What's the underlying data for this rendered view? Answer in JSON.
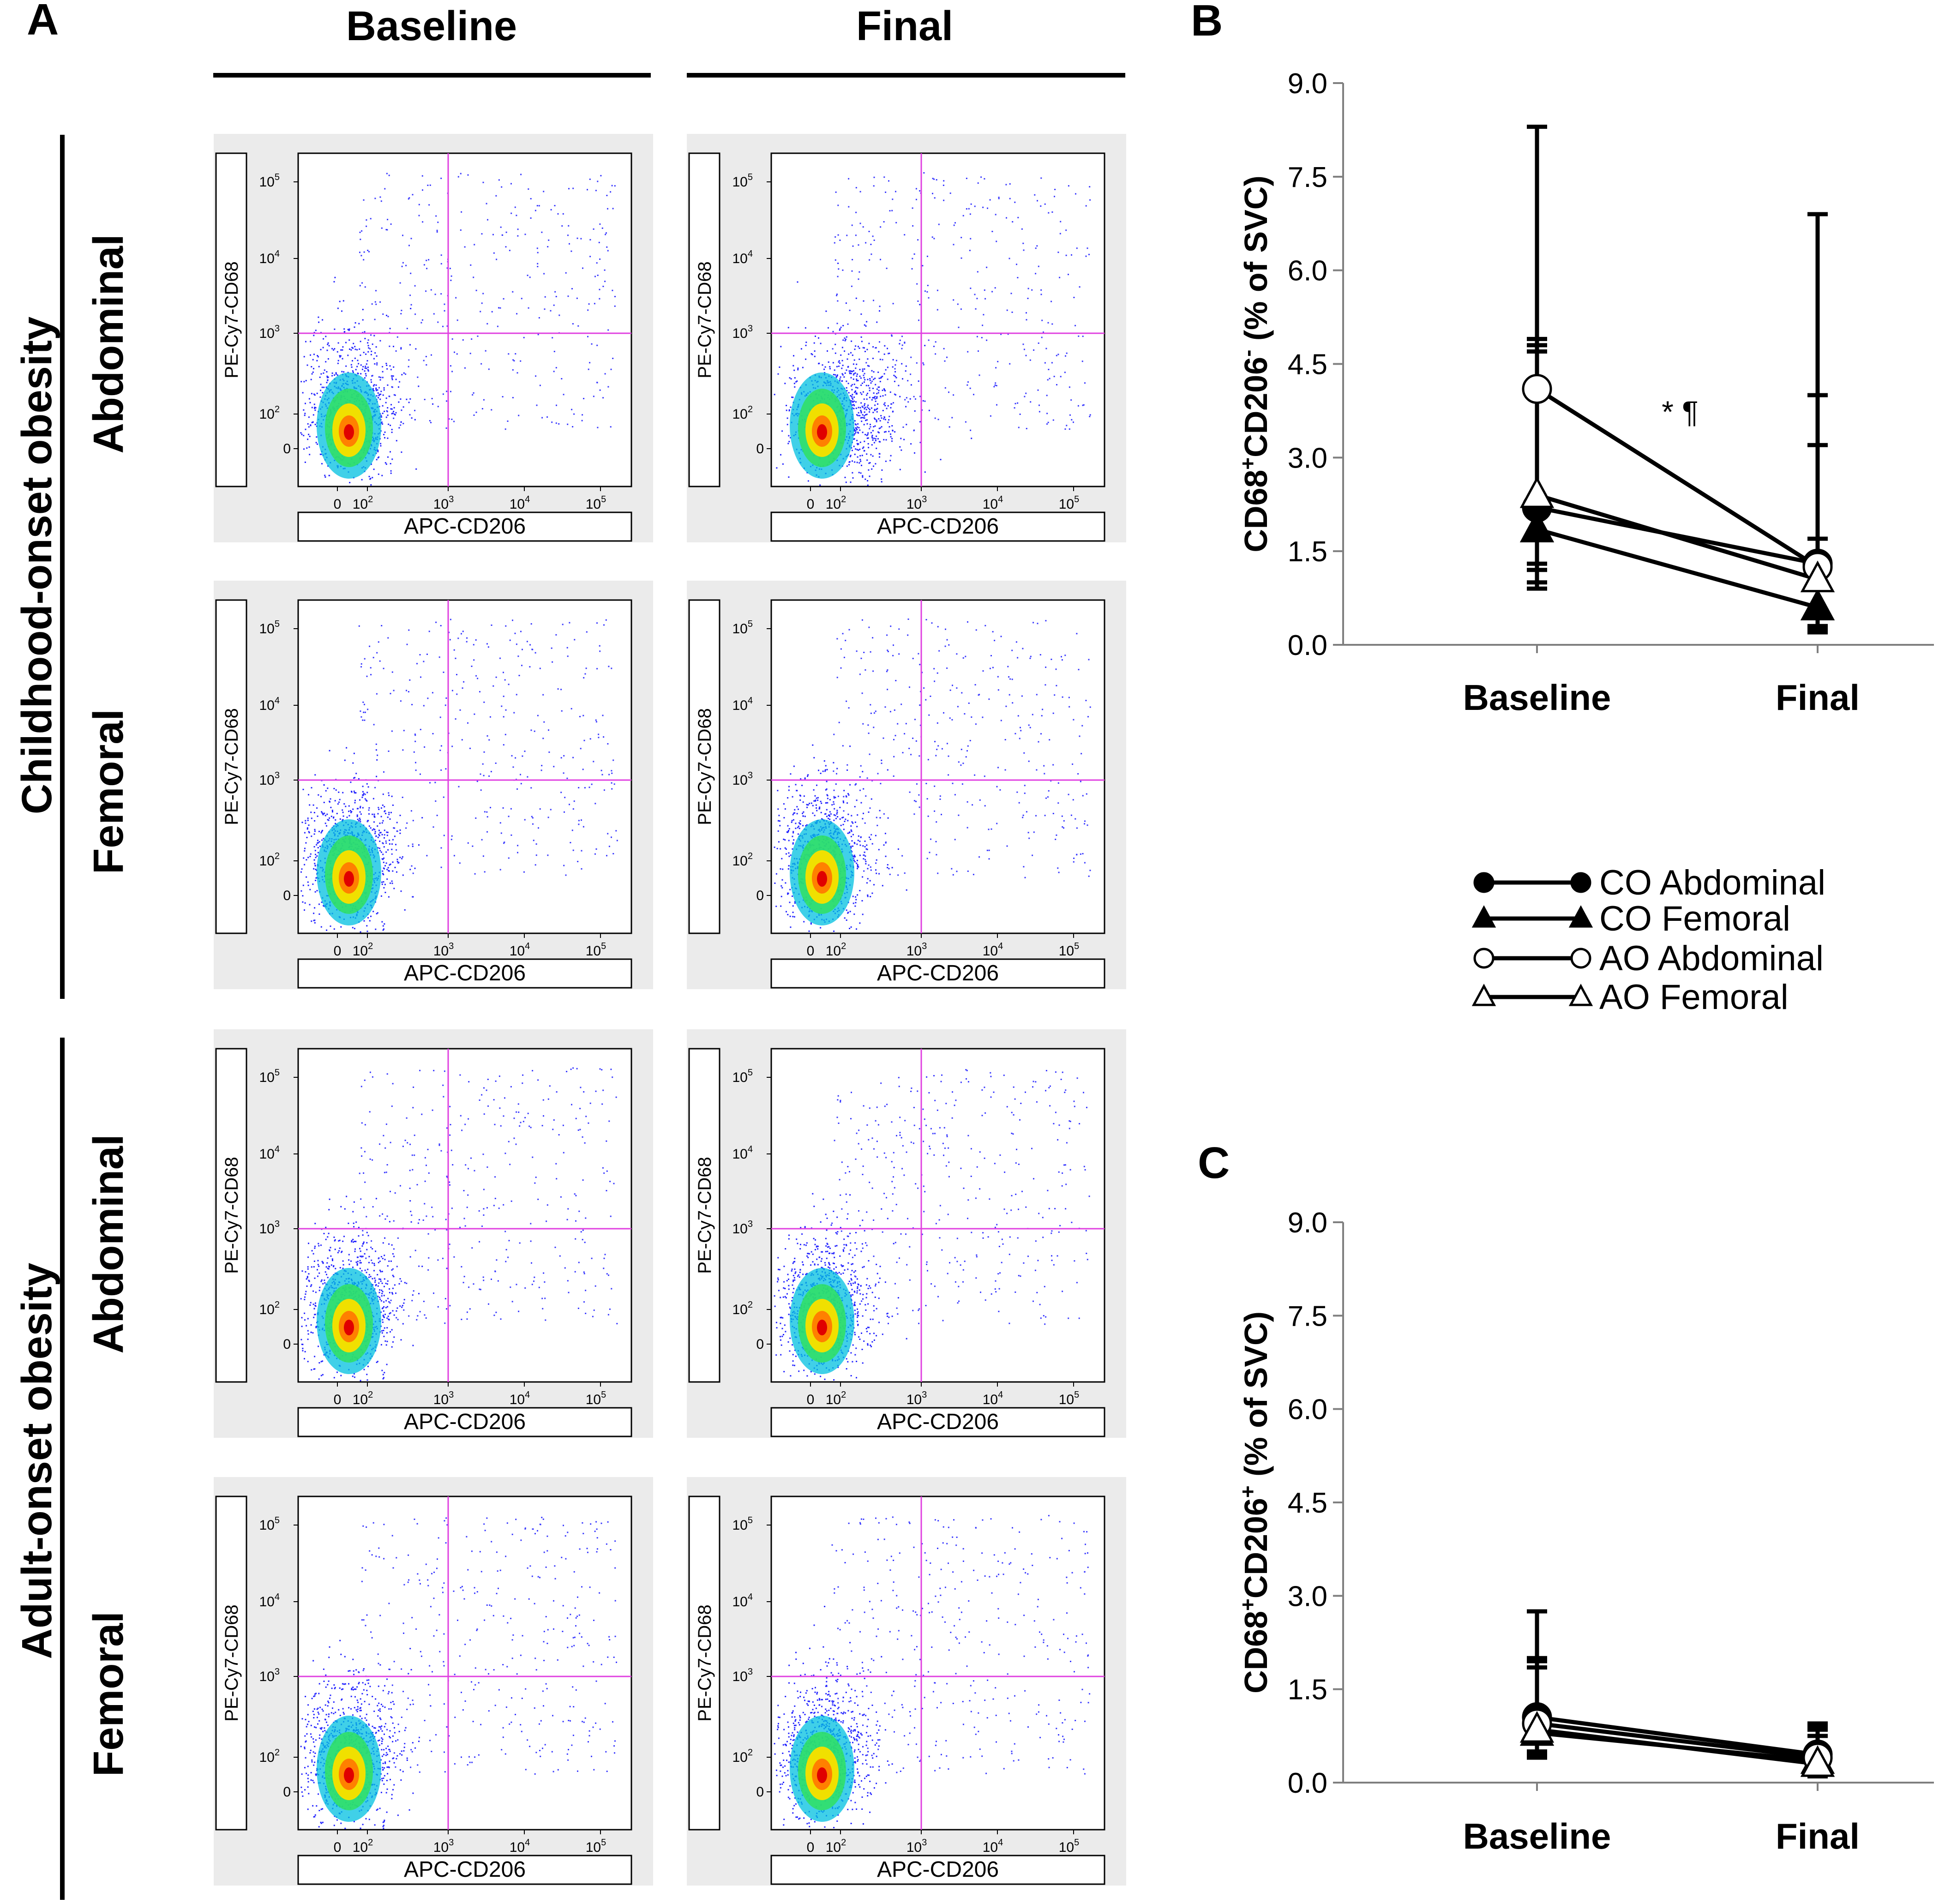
{
  "panel_labels": {
    "a": "A",
    "b": "B",
    "c": "C"
  },
  "flow": {
    "col_headers": [
      "Baseline",
      "Final"
    ],
    "group_labels": [
      "Childhood-onset obesity",
      "Adult-onset obesity"
    ],
    "row_labels": [
      "Abdominal",
      "Femoral",
      "Abdominal",
      "Femoral"
    ],
    "x_axis_label": "APC-CD206",
    "y_axis_label": "PE-Cy7-CD68",
    "tick_base": "10",
    "tick_zero": "0",
    "tick_exps": [
      "2",
      "3",
      "4",
      "5"
    ],
    "quadrant_line_color": "#e040e0",
    "panel_bg_color": "#ebebeb"
  },
  "legend": {
    "entries": [
      "CO Abdominal",
      "CO Femoral",
      "AO Abdominal",
      "AO Femoral"
    ]
  },
  "chart_data": [
    {
      "id": "B",
      "type": "line",
      "title": "",
      "ylabel": "CD68+CD206- (% of SVC)",
      "ylabel_main": "CD68",
      "ylabel_sup1": "+",
      "ylabel_mid": "CD206",
      "ylabel_sup2": "-",
      "ylabel_tail": " (% of SVC)",
      "categories": [
        "Baseline",
        "Final"
      ],
      "ylim": [
        0.0,
        9.0
      ],
      "yticks": [
        "0.0",
        "1.5",
        "3.0",
        "4.5",
        "6.0",
        "7.5",
        "9.0"
      ],
      "annotation": "* ¶",
      "series": [
        {
          "name": "CO Abdominal",
          "marker": "circle-filled",
          "values": [
            2.2,
            1.3
          ],
          "err_upper": [
            4.9,
            3.2
          ],
          "err_lower": [
            1.0,
            0.3
          ]
        },
        {
          "name": "CO Femoral",
          "marker": "triangle-filled",
          "values": [
            1.85,
            0.6
          ],
          "err_upper": [
            4.7,
            1.7
          ],
          "err_lower": [
            0.9,
            0.2
          ]
        },
        {
          "name": "AO Abdominal",
          "marker": "circle-open",
          "values": [
            4.1,
            1.25
          ],
          "err_upper": [
            8.3,
            4.0
          ],
          "err_lower": [
            1.2,
            0.3
          ]
        },
        {
          "name": "AO Femoral",
          "marker": "triangle-open",
          "values": [
            2.4,
            1.05
          ],
          "err_upper": [
            4.8,
            6.9
          ],
          "err_lower": [
            1.3,
            0.25
          ]
        }
      ]
    },
    {
      "id": "C",
      "type": "line",
      "title": "",
      "ylabel": "CD68+CD206+ (% of SVC)",
      "ylabel_main": "CD68",
      "ylabel_sup1": "+",
      "ylabel_mid": "CD206",
      "ylabel_sup2": "+",
      "ylabel_tail": " (% of SVC)",
      "categories": [
        "Baseline",
        "Final"
      ],
      "ylim": [
        0.0,
        9.0
      ],
      "yticks": [
        "0.0",
        "1.5",
        "3.0",
        "4.5",
        "6.0",
        "7.5",
        "9.0"
      ],
      "series": [
        {
          "name": "CO Abdominal",
          "marker": "circle-filled",
          "values": [
            1.05,
            0.45
          ],
          "err_upper": [
            1.95,
            0.95
          ],
          "err_lower": [
            0.5,
            0.15
          ]
        },
        {
          "name": "CO Femoral",
          "marker": "triangle-filled",
          "values": [
            0.8,
            0.35
          ],
          "err_upper": [
            1.85,
            0.85
          ],
          "err_lower": [
            0.4,
            0.1
          ]
        },
        {
          "name": "AO Abdominal",
          "marker": "circle-open",
          "values": [
            0.95,
            0.4
          ],
          "err_upper": [
            2.75,
            0.9
          ],
          "err_lower": [
            0.45,
            0.12
          ]
        },
        {
          "name": "AO Femoral",
          "marker": "triangle-open",
          "values": [
            0.85,
            0.3
          ],
          "err_upper": [
            2.0,
            0.75
          ],
          "err_lower": [
            0.42,
            0.1
          ]
        }
      ]
    }
  ]
}
